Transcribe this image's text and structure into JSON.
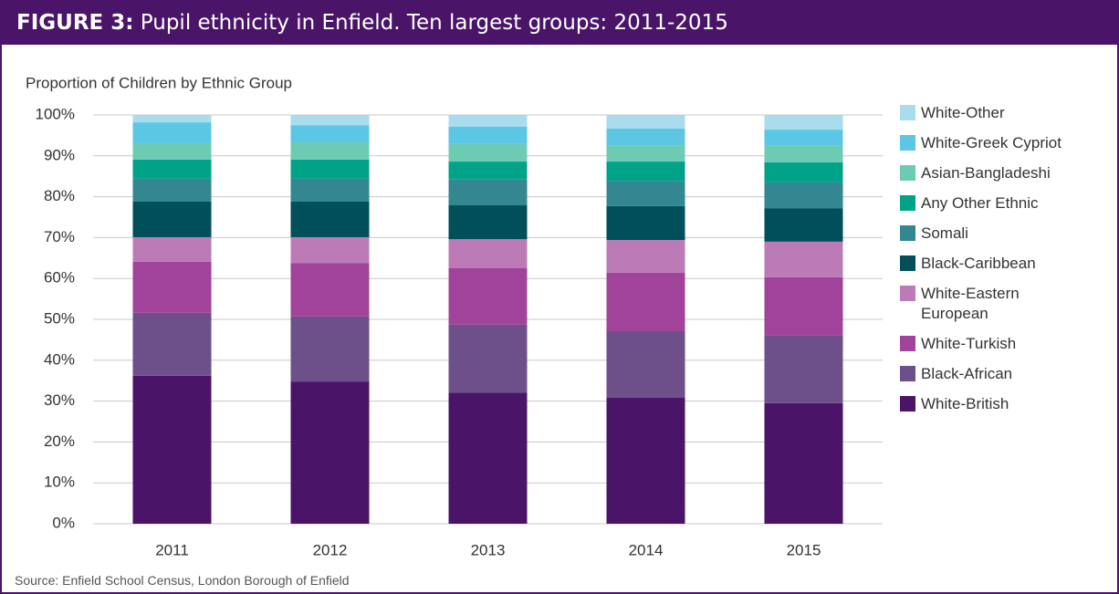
{
  "chart_data": {
    "type": "stacked_bar",
    "figure_label": "FIGURE 3:",
    "title": "Pupil ethnicity in Enfield. Ten largest groups: 2011-2015",
    "subtitle": "Proportion of Children by Ethnic Group",
    "source": "Source: Enfield School Census, London Borough of Enfield",
    "categories": [
      "2011",
      "2012",
      "2013",
      "2014",
      "2015"
    ],
    "series": [
      {
        "name": "White-British",
        "color": "#4a1568",
        "values": [
          36.2,
          34.8,
          32.1,
          30.8,
          29.5
        ]
      },
      {
        "name": "Black-African",
        "color": "#6d4f8a",
        "values": [
          15.4,
          15.9,
          16.6,
          16.3,
          16.5
        ]
      },
      {
        "name": "White-Turkish",
        "color": "#a1439a",
        "values": [
          12.5,
          13.1,
          13.8,
          14.3,
          14.3
        ]
      },
      {
        "name": "White-Eastern European",
        "color": "#bc7bb6",
        "values": [
          6.0,
          6.3,
          7.1,
          8.0,
          8.7
        ]
      },
      {
        "name": "Black-Caribbean",
        "color": "#004f5a",
        "values": [
          8.7,
          8.7,
          8.3,
          8.3,
          8.2
        ]
      },
      {
        "name": "Somali",
        "color": "#338791",
        "values": [
          5.6,
          5.6,
          6.3,
          6.2,
          6.3
        ]
      },
      {
        "name": "Any Other Ethnic",
        "color": "#00a388",
        "values": [
          4.7,
          4.7,
          4.4,
          4.7,
          4.9
        ]
      },
      {
        "name": "Asian-Bangladeshi",
        "color": "#6ecbb3",
        "values": [
          4.0,
          4.2,
          4.3,
          4.0,
          4.2
        ]
      },
      {
        "name": "White-Greek Cypriot",
        "color": "#5bc7e5",
        "values": [
          5.1,
          4.2,
          4.2,
          4.1,
          3.8
        ]
      },
      {
        "name": "White-Other",
        "color": "#a9dcec",
        "values": [
          1.8,
          2.5,
          2.9,
          3.3,
          3.6
        ]
      }
    ],
    "ylim": [
      0,
      100
    ],
    "yticks": [
      {
        "value": 0,
        "label": "0%"
      },
      {
        "value": 10,
        "label": "10%"
      },
      {
        "value": 20,
        "label": "20%"
      },
      {
        "value": 30,
        "label": "30%"
      },
      {
        "value": 40,
        "label": "40%"
      },
      {
        "value": 50,
        "label": "50%"
      },
      {
        "value": 60,
        "label": "60%"
      },
      {
        "value": 70,
        "label": "70%"
      },
      {
        "value": 80,
        "label": "80%"
      },
      {
        "value": 90,
        "label": "90%"
      },
      {
        "value": 100,
        "label": "100%"
      }
    ],
    "grid": true
  }
}
